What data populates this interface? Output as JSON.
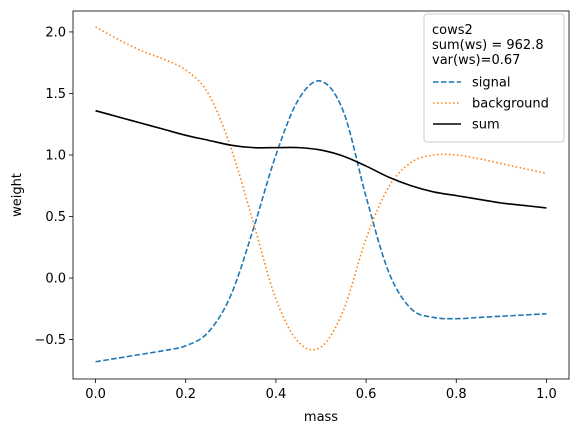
{
  "chart_data": {
    "type": "line",
    "xlabel": "mass",
    "ylabel": "weight",
    "xlim": [
      -0.05,
      1.05
    ],
    "ylim": [
      -0.82,
      2.17
    ],
    "xticks": [
      0.0,
      0.2,
      0.4,
      0.6,
      0.8,
      1.0
    ],
    "xtick_labels": [
      "0.0",
      "0.2",
      "0.4",
      "0.6",
      "0.8",
      "1.0"
    ],
    "yticks": [
      -0.5,
      0.0,
      0.5,
      1.0,
      1.5,
      2.0
    ],
    "ytick_labels": [
      "−0.5",
      "0.0",
      "0.5",
      "1.0",
      "1.5",
      "2.0"
    ],
    "grid": false,
    "legend": {
      "placement": "top-right",
      "title_lines": [
        "cows2",
        "sum(ws) = 962.8",
        "var(ws)=0.67"
      ]
    },
    "series": [
      {
        "name": "signal",
        "style": "dashed",
        "color": "#1f77b4",
        "x": [
          0.0,
          0.05,
          0.1,
          0.15,
          0.2,
          0.25,
          0.3,
          0.35,
          0.4,
          0.45,
          0.5,
          0.55,
          0.6,
          0.65,
          0.7,
          0.75,
          0.8,
          0.85,
          0.9,
          0.95,
          1.0
        ],
        "y": [
          -0.68,
          -0.65,
          -0.62,
          -0.59,
          -0.55,
          -0.44,
          -0.14,
          0.4,
          1.0,
          1.45,
          1.6,
          1.35,
          0.66,
          0.05,
          -0.25,
          -0.32,
          -0.33,
          -0.32,
          -0.31,
          -0.3,
          -0.29
        ]
      },
      {
        "name": "background",
        "style": "dotted",
        "color": "#ff7f0e",
        "x": [
          0.0,
          0.05,
          0.1,
          0.15,
          0.2,
          0.25,
          0.3,
          0.35,
          0.4,
          0.45,
          0.5,
          0.55,
          0.6,
          0.65,
          0.7,
          0.75,
          0.8,
          0.85,
          0.9,
          0.95,
          1.0
        ],
        "y": [
          2.04,
          1.94,
          1.85,
          1.78,
          1.69,
          1.5,
          1.06,
          0.45,
          -0.17,
          -0.52,
          -0.56,
          -0.26,
          0.32,
          0.74,
          0.94,
          1.0,
          1.0,
          0.97,
          0.93,
          0.89,
          0.85
        ]
      },
      {
        "name": "sum",
        "style": "solid",
        "color": "#000000",
        "x": [
          0.0,
          0.05,
          0.1,
          0.15,
          0.2,
          0.25,
          0.3,
          0.35,
          0.4,
          0.45,
          0.5,
          0.55,
          0.6,
          0.65,
          0.7,
          0.75,
          0.8,
          0.85,
          0.9,
          0.95,
          1.0
        ],
        "y": [
          1.36,
          1.31,
          1.26,
          1.21,
          1.16,
          1.12,
          1.08,
          1.06,
          1.06,
          1.06,
          1.04,
          0.99,
          0.91,
          0.82,
          0.75,
          0.7,
          0.67,
          0.64,
          0.61,
          0.59,
          0.57
        ]
      }
    ]
  }
}
